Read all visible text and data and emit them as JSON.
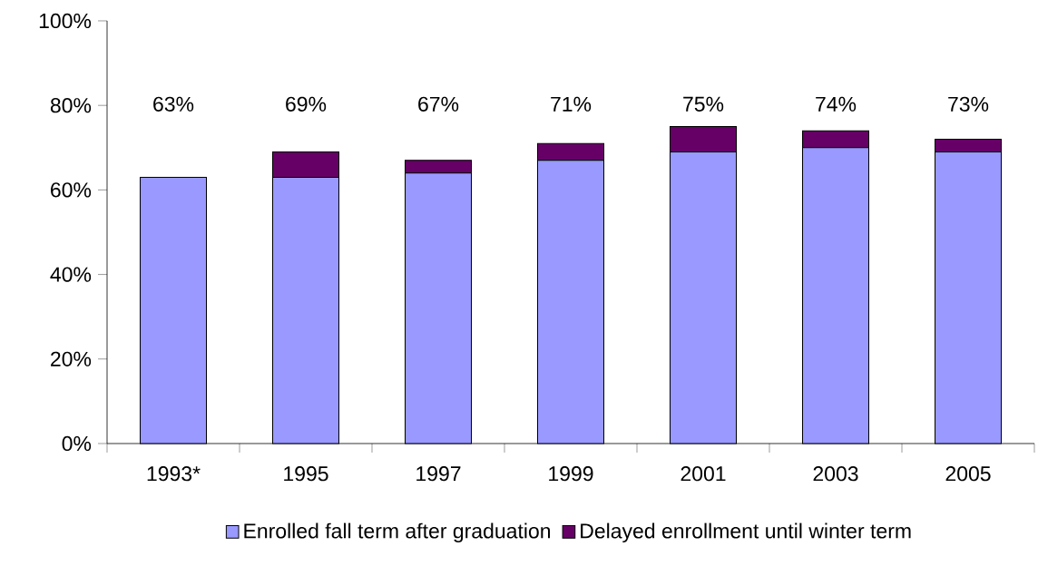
{
  "chart_data": {
    "type": "bar",
    "stacked": true,
    "categories": [
      "1993*",
      "1995",
      "1997",
      "1999",
      "2001",
      "2003",
      "2005"
    ],
    "series": [
      {
        "name": "Enrolled fall term after graduation",
        "color": "#9999ff",
        "values": [
          63,
          63,
          64,
          67,
          69,
          70,
          69
        ]
      },
      {
        "name": "Delayed enrollment until winter term",
        "color": "#660066",
        "values": [
          null,
          6,
          3,
          4,
          6,
          4,
          3
        ]
      }
    ],
    "totals": [
      "63%",
      "69%",
      "67%",
      "71%",
      "75%",
      "74%",
      "73%"
    ],
    "ylim": [
      0,
      100
    ],
    "yticks": [
      {
        "value": 0,
        "label": "0%"
      },
      {
        "value": 20,
        "label": "20%"
      },
      {
        "value": 40,
        "label": "40%"
      },
      {
        "value": 60,
        "label": "60%"
      },
      {
        "value": 80,
        "label": "80%"
      },
      {
        "value": 100,
        "label": "100%"
      }
    ],
    "legend": "bottom"
  }
}
